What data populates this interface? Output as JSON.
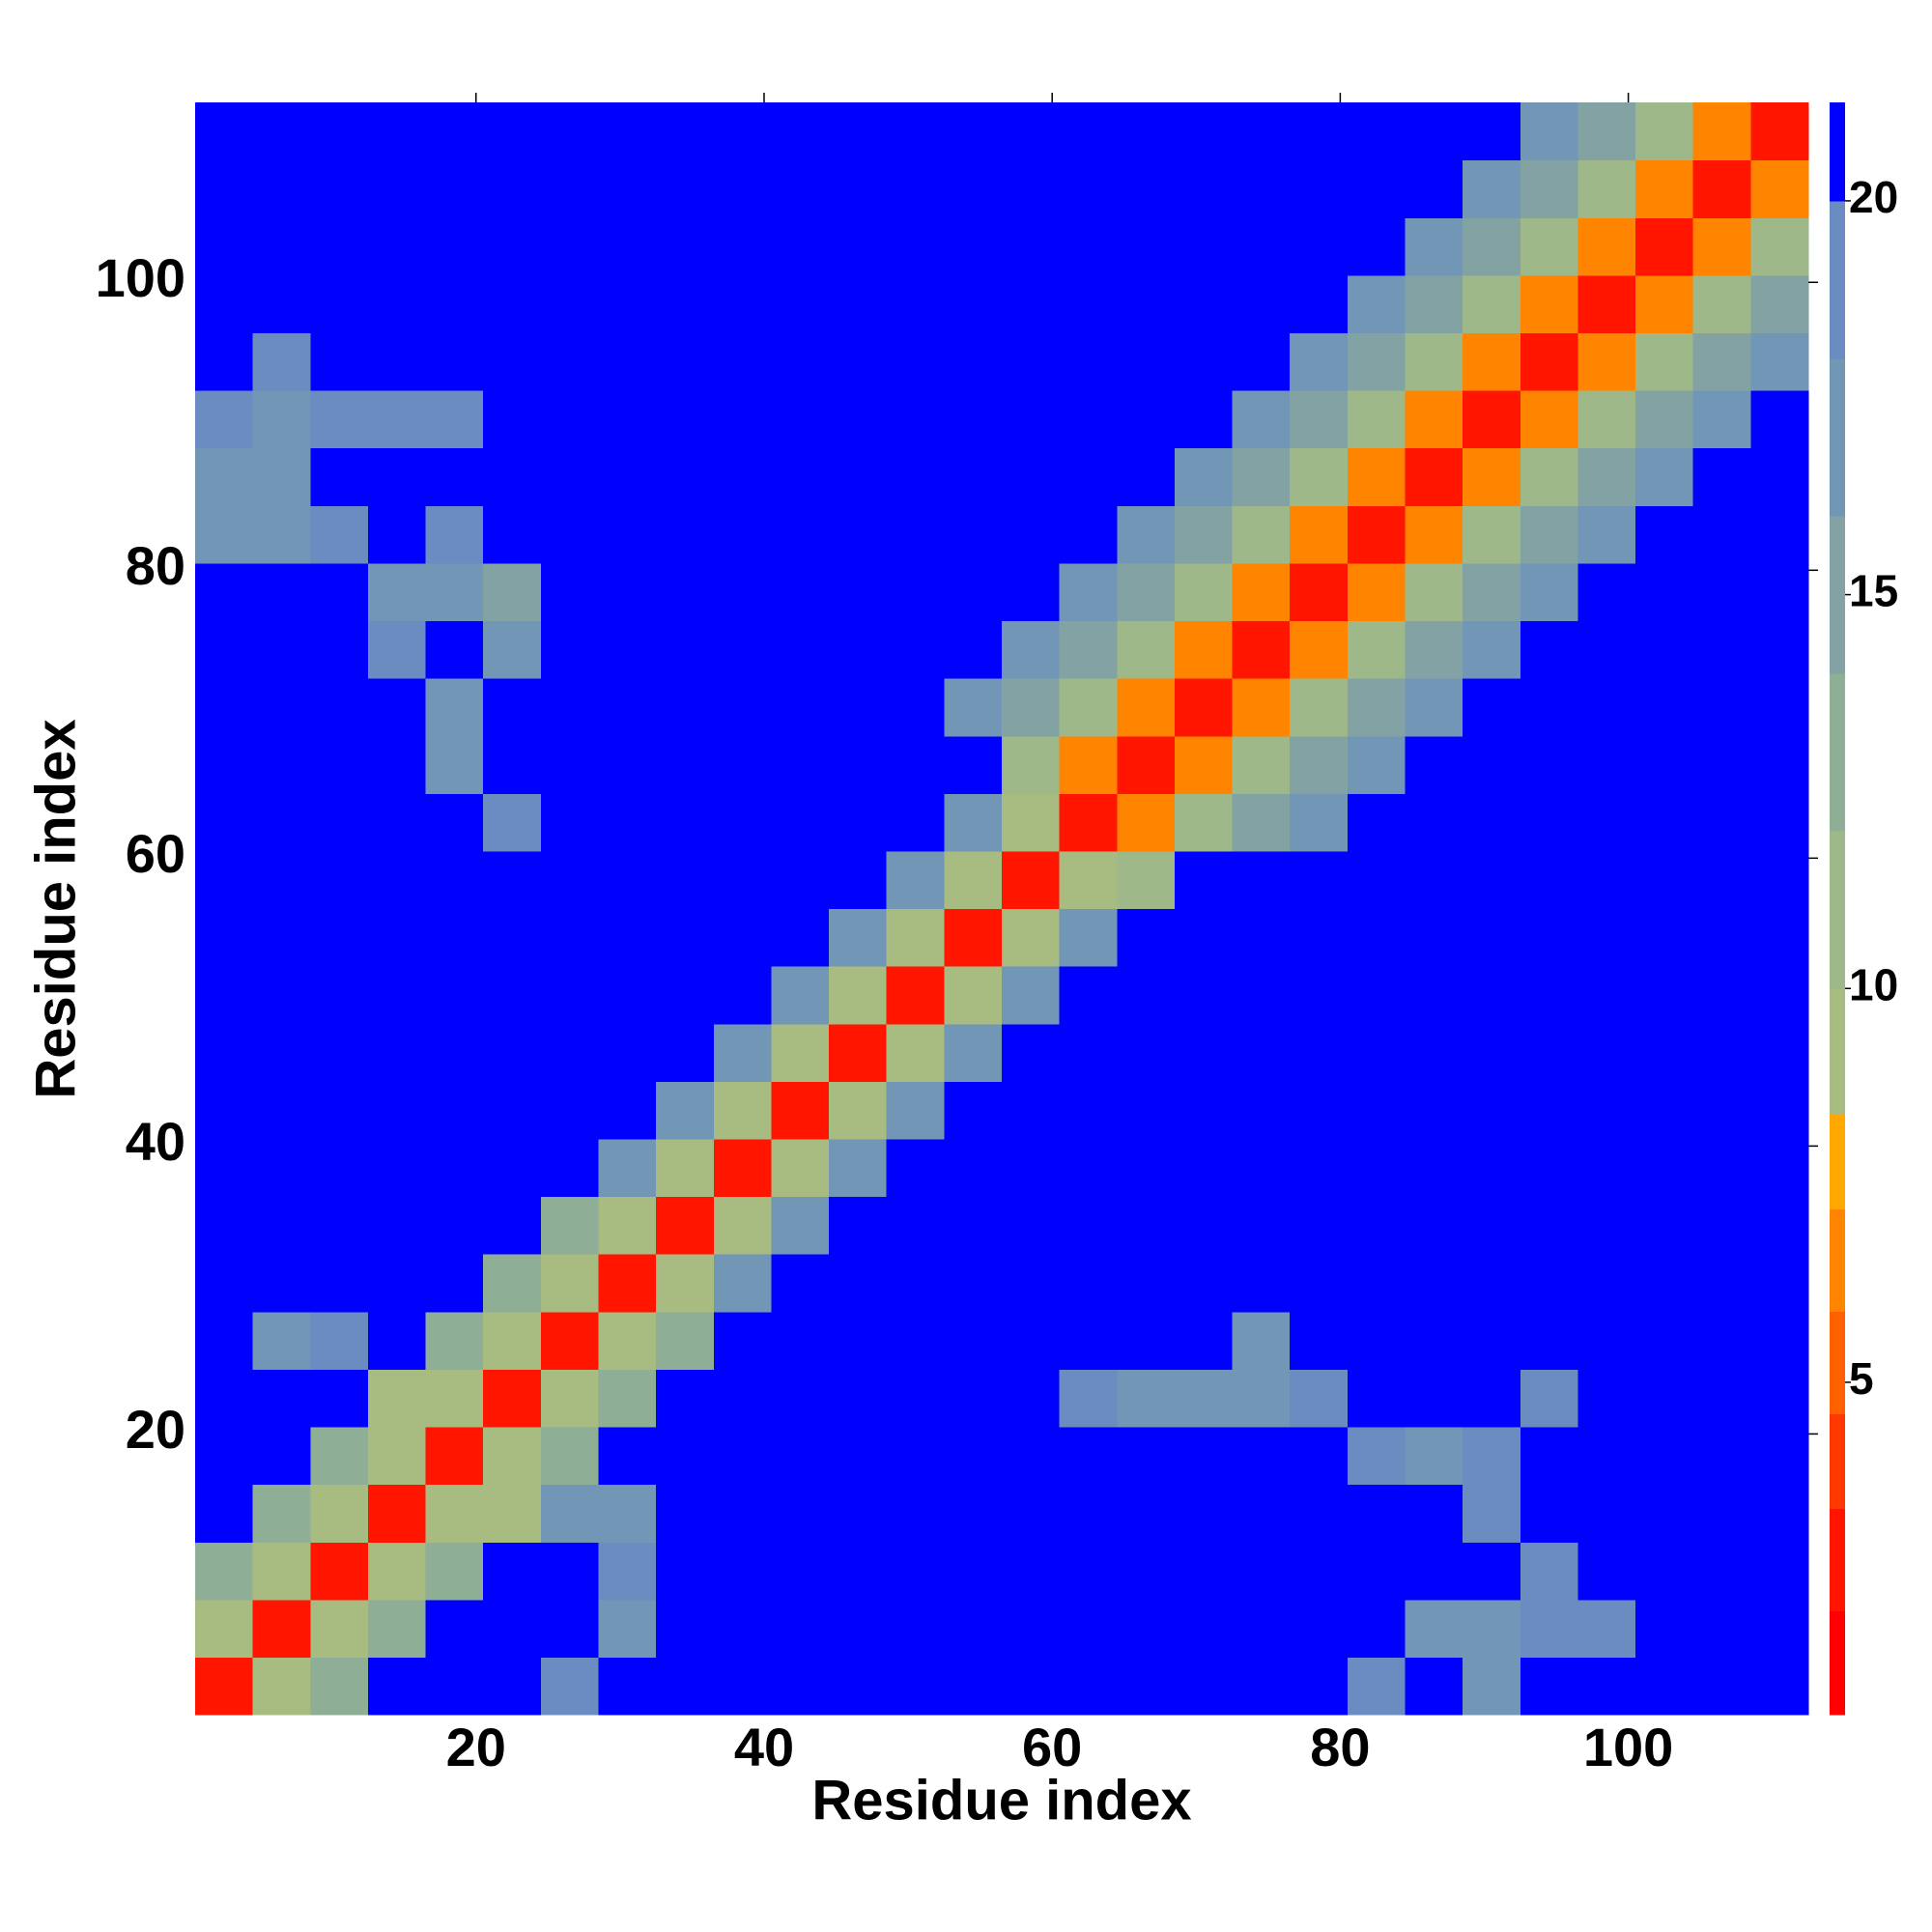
{
  "chart_data": {
    "type": "heatmap",
    "xlabel": "Residue index",
    "ylabel": "Residue index",
    "xlim": [
      0.5,
      112.5
    ],
    "ylim": [
      0.5,
      112.5
    ],
    "xticks": [
      20,
      40,
      60,
      80,
      100
    ],
    "yticks": [
      20,
      40,
      60,
      80,
      100
    ],
    "x": [
      2.5,
      6.5,
      10.5,
      14.5,
      18.5,
      22.5,
      26.5,
      30.5,
      34.5,
      38.5,
      42.5,
      46.5,
      50.5,
      54.5,
      58.5,
      62.5,
      66.5,
      70.5,
      74.5,
      78.5,
      82.5,
      86.5,
      90.5,
      94.5,
      98.5,
      102.5,
      106.5,
      110.5
    ],
    "y": [
      2.5,
      6.5,
      10.5,
      14.5,
      18.5,
      22.5,
      26.5,
      30.5,
      34.5,
      38.5,
      42.5,
      46.5,
      50.5,
      54.5,
      58.5,
      62.5,
      66.5,
      70.5,
      74.5,
      78.5,
      82.5,
      86.5,
      90.5,
      94.5,
      98.5,
      102.5,
      106.5,
      110.5
    ],
    "z": [
      [
        3,
        9,
        14,
        21,
        21,
        21,
        19,
        21,
        21,
        21,
        21,
        21,
        21,
        21,
        21,
        21,
        21,
        21,
        21,
        21,
        19,
        21,
        18,
        21,
        21,
        21,
        21,
        21
      ],
      [
        9,
        3,
        9,
        14,
        21,
        21,
        21,
        18,
        21,
        21,
        21,
        21,
        21,
        21,
        21,
        21,
        21,
        21,
        21,
        21,
        21,
        18,
        18,
        19,
        19,
        21,
        21,
        21
      ],
      [
        14,
        9,
        3,
        9,
        14,
        21,
        21,
        19,
        21,
        21,
        21,
        21,
        21,
        21,
        21,
        21,
        21,
        21,
        21,
        21,
        21,
        21,
        21,
        19,
        21,
        21,
        21,
        21
      ],
      [
        21,
        14,
        9,
        3,
        9,
        10,
        17,
        18,
        21,
        21,
        21,
        21,
        21,
        21,
        21,
        21,
        21,
        21,
        21,
        21,
        21,
        21,
        19,
        21,
        21,
        21,
        21,
        21
      ],
      [
        21,
        21,
        14,
        9,
        3,
        9,
        14,
        21,
        21,
        21,
        21,
        21,
        21,
        21,
        21,
        21,
        21,
        21,
        21,
        21,
        19,
        18,
        19,
        21,
        21,
        21,
        21,
        21
      ],
      [
        21,
        21,
        21,
        9,
        10,
        3,
        9,
        14,
        21,
        21,
        21,
        21,
        21,
        21,
        21,
        19,
        18,
        18,
        17,
        19,
        21,
        21,
        21,
        19,
        21,
        21,
        21,
        21
      ],
      [
        21,
        18,
        19,
        21,
        14,
        9,
        3,
        9,
        14,
        21,
        21,
        21,
        21,
        21,
        21,
        21,
        21,
        21,
        18,
        21,
        21,
        21,
        21,
        21,
        21,
        21,
        21,
        21
      ],
      [
        21,
        21,
        21,
        21,
        21,
        14,
        9,
        3,
        9,
        17,
        21,
        21,
        21,
        21,
        21,
        21,
        21,
        21,
        21,
        21,
        21,
        21,
        21,
        21,
        21,
        21,
        21,
        21
      ],
      [
        21,
        21,
        21,
        21,
        21,
        21,
        14,
        9,
        3,
        10,
        17,
        21,
        21,
        21,
        21,
        21,
        21,
        21,
        21,
        21,
        21,
        21,
        21,
        21,
        21,
        21,
        21,
        21
      ],
      [
        21,
        21,
        21,
        21,
        21,
        21,
        21,
        17,
        10,
        3,
        10,
        17,
        21,
        21,
        21,
        21,
        21,
        21,
        21,
        21,
        21,
        21,
        21,
        21,
        21,
        21,
        21,
        21
      ],
      [
        21,
        21,
        21,
        21,
        21,
        21,
        21,
        21,
        17,
        10,
        3,
        10,
        17,
        21,
        21,
        21,
        21,
        21,
        21,
        21,
        21,
        21,
        21,
        21,
        21,
        21,
        21,
        21
      ],
      [
        21,
        21,
        21,
        21,
        21,
        21,
        21,
        21,
        21,
        17,
        10,
        3,
        10,
        17,
        21,
        21,
        21,
        21,
        21,
        21,
        21,
        21,
        21,
        21,
        21,
        21,
        21,
        21
      ],
      [
        21,
        21,
        21,
        21,
        21,
        21,
        21,
        21,
        21,
        21,
        17,
        10,
        3,
        10,
        17,
        21,
        21,
        21,
        21,
        21,
        21,
        21,
        21,
        21,
        21,
        21,
        21,
        21
      ],
      [
        21,
        21,
        21,
        21,
        21,
        21,
        21,
        21,
        21,
        21,
        21,
        17,
        10,
        3,
        10,
        17,
        21,
        21,
        21,
        21,
        21,
        21,
        21,
        21,
        21,
        21,
        21,
        21
      ],
      [
        21,
        21,
        21,
        21,
        21,
        21,
        21,
        21,
        21,
        21,
        21,
        21,
        17,
        10,
        3,
        10,
        11,
        21,
        21,
        21,
        21,
        21,
        21,
        21,
        21,
        21,
        21,
        21
      ],
      [
        21,
        21,
        21,
        21,
        21,
        19,
        21,
        21,
        21,
        21,
        21,
        21,
        21,
        17,
        10,
        3,
        7,
        11,
        15,
        18,
        21,
        21,
        21,
        21,
        21,
        21,
        21,
        21
      ],
      [
        21,
        21,
        21,
        21,
        18,
        21,
        21,
        21,
        21,
        21,
        21,
        21,
        21,
        21,
        11,
        7,
        3,
        7,
        11,
        15,
        18,
        21,
        21,
        21,
        21,
        21,
        21,
        21
      ],
      [
        21,
        21,
        21,
        21,
        18,
        21,
        21,
        21,
        21,
        21,
        21,
        21,
        21,
        18,
        15,
        11,
        7,
        3,
        7,
        11,
        15,
        18,
        21,
        21,
        21,
        21,
        21,
        21
      ],
      [
        21,
        21,
        21,
        19,
        21,
        18,
        21,
        21,
        21,
        21,
        21,
        21,
        21,
        21,
        18,
        15,
        11,
        7,
        3,
        7,
        11,
        15,
        18,
        21,
        21,
        21,
        21,
        21
      ],
      [
        21,
        21,
        21,
        18,
        17,
        16,
        21,
        21,
        21,
        21,
        21,
        21,
        21,
        21,
        21,
        18,
        15,
        11,
        7,
        3,
        7,
        11,
        15,
        18,
        21,
        21,
        21,
        21
      ],
      [
        18,
        17,
        19,
        21,
        19,
        21,
        21,
        21,
        21,
        21,
        21,
        21,
        21,
        21,
        21,
        21,
        18,
        15,
        11,
        7,
        3,
        7,
        11,
        15,
        18,
        21,
        21,
        21
      ],
      [
        17,
        18,
        21,
        21,
        21,
        21,
        21,
        21,
        21,
        21,
        21,
        21,
        21,
        21,
        21,
        21,
        21,
        18,
        15,
        11,
        7,
        3,
        7,
        11,
        15,
        18,
        21,
        21
      ],
      [
        19,
        18,
        19,
        19,
        19,
        21,
        21,
        21,
        21,
        21,
        21,
        21,
        21,
        21,
        21,
        21,
        21,
        21,
        18,
        15,
        11,
        7,
        3,
        7,
        11,
        15,
        18,
        21
      ],
      [
        21,
        19,
        21,
        21,
        21,
        21,
        21,
        21,
        21,
        21,
        21,
        21,
        21,
        21,
        21,
        21,
        21,
        21,
        21,
        18,
        15,
        11,
        7,
        3,
        7,
        11,
        15,
        18
      ],
      [
        21,
        21,
        21,
        21,
        21,
        21,
        21,
        21,
        21,
        21,
        21,
        21,
        21,
        21,
        21,
        21,
        21,
        21,
        21,
        21,
        18,
        15,
        11,
        7,
        3,
        7,
        11,
        15
      ],
      [
        21,
        21,
        21,
        21,
        21,
        21,
        21,
        21,
        21,
        21,
        21,
        21,
        21,
        21,
        21,
        21,
        21,
        21,
        21,
        21,
        21,
        18,
        15,
        11,
        7,
        3,
        7,
        11
      ],
      [
        21,
        21,
        21,
        21,
        21,
        21,
        21,
        21,
        21,
        21,
        21,
        21,
        21,
        21,
        21,
        21,
        21,
        21,
        21,
        21,
        21,
        21,
        18,
        15,
        11,
        7,
        3,
        7
      ],
      [
        21,
        21,
        21,
        21,
        21,
        21,
        21,
        21,
        21,
        21,
        21,
        21,
        21,
        21,
        21,
        21,
        21,
        21,
        21,
        21,
        21,
        21,
        21,
        18,
        15,
        11,
        7,
        3
      ]
    ],
    "colorbar": {
      "ticks": [
        5,
        10,
        15,
        20
      ],
      "levels": [
        0.78,
        2.1,
        3.4,
        4.6,
        5.9,
        7.2,
        8.4,
        10,
        12,
        14,
        16,
        18,
        20,
        21.25
      ],
      "colors": [
        "#ff0000",
        "#ff1500",
        "#ff3a00",
        "#ff6000",
        "#ff8400",
        "#ffa800",
        "#a8bb80",
        "#9fb889",
        "#8fae96",
        "#82a2a4",
        "#7296b6",
        "#6a8cc0",
        "#0000ff"
      ]
    }
  }
}
